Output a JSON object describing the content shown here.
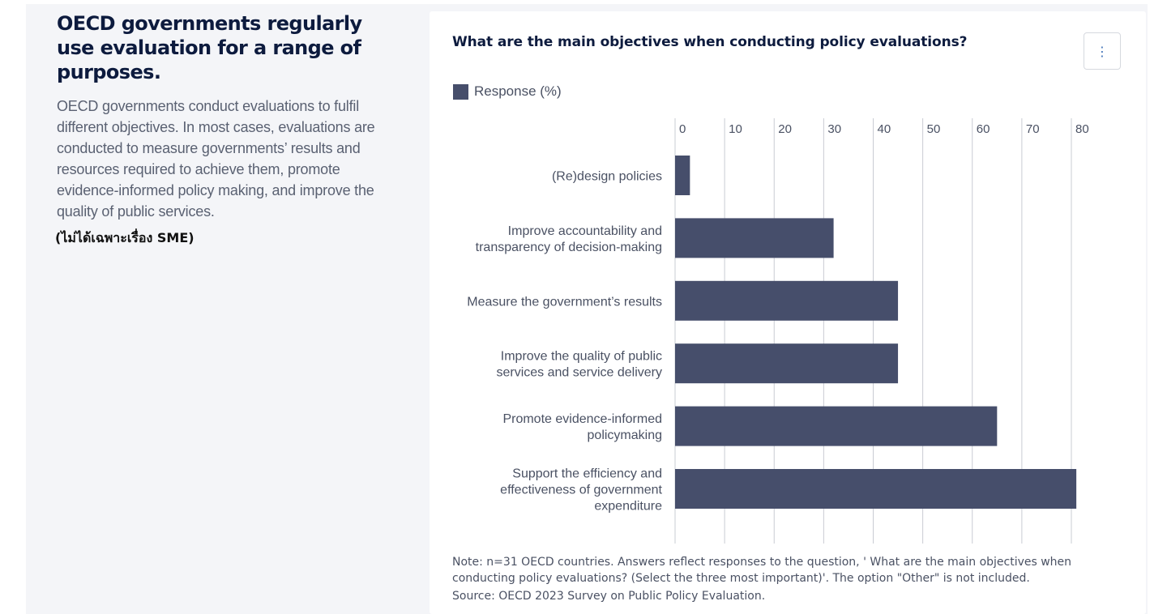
{
  "left_panel": {
    "headline": "OECD governments regularly use evaluation for a range of purposes.",
    "lead": "OECD governments conduct evaluations to fulfil different objectives. In most cases,  evaluations are conducted to measure governments’ results and resources required to achieve them, promote evidence-informed policy making, and improve the quality of public services.",
    "thai_note": "(ไม่ได้เฉพาะเรื่อง SME)"
  },
  "chart_card": {
    "menu_icon": "more-vertical-icon",
    "menu_glyph": "⋮",
    "note": "Note: n=31 OECD countries. Answers reflect responses to the question, ' What are the main objectives when conducting policy evaluations? (Select the three most important)'. The option \"Other\" is not included.",
    "source": "Source: OECD 2023 Survey on Public Policy Evaluation."
  },
  "colors": {
    "bar": "#464e6b",
    "grid": "#c9ccd3",
    "text": "#4a5163",
    "title": "#0d1b3e"
  },
  "chart_data": {
    "type": "bar",
    "orientation": "horizontal",
    "title": "What are the main objectives when conducting policy evaluations?",
    "categories": [
      [
        "(Re)design policies"
      ],
      [
        "Improve accountability and",
        "transparency of decision-making"
      ],
      [
        "Measure the government’s results"
      ],
      [
        "Improve the quality of public",
        "services and service delivery"
      ],
      [
        "Promote evidence-informed",
        "policymaking"
      ],
      [
        "Support the efficiency and",
        "effectiveness of government",
        "expenditure"
      ]
    ],
    "series": [
      {
        "name": "Response (%)",
        "values": [
          3,
          32,
          45,
          45,
          65,
          81
        ]
      }
    ],
    "xlim": [
      0,
      80
    ],
    "xticks": [
      0,
      10,
      20,
      30,
      40,
      50,
      60,
      70,
      80
    ],
    "axis_position": "top",
    "grid": true,
    "legend": "top-left"
  }
}
